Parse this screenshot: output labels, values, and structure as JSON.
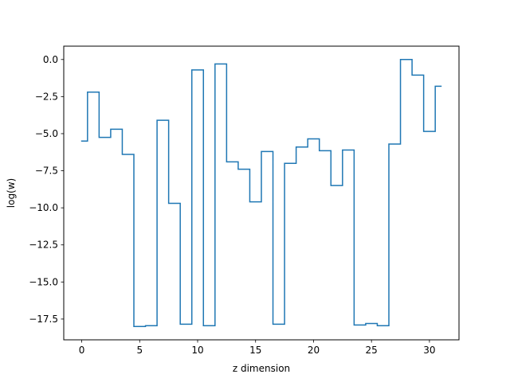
{
  "chart_data": {
    "type": "line",
    "drawstyle": "steps-mid",
    "title": "",
    "xlabel": "z dimension",
    "ylabel": "log(w)",
    "xlim": [
      -1.55,
      32.55
    ],
    "ylim": [
      -18.9,
      0.9
    ],
    "xticks": [
      0,
      5,
      10,
      15,
      20,
      25,
      30
    ],
    "xtick_labels": [
      "0",
      "5",
      "10",
      "15",
      "20",
      "25",
      "30"
    ],
    "yticks": [
      0.0,
      -2.5,
      -5.0,
      -7.5,
      -10.0,
      -12.5,
      -15.0,
      -17.5
    ],
    "ytick_labels": [
      "0.0",
      "−2.5",
      "−5.0",
      "−7.5",
      "−10.0",
      "−12.5",
      "−15.0",
      "−17.5"
    ],
    "grid": false,
    "legend": null,
    "series": [
      {
        "color": "#1f77b4",
        "x": [
          0,
          1,
          2,
          3,
          4,
          5,
          6,
          7,
          8,
          9,
          10,
          11,
          12,
          13,
          14,
          15,
          16,
          17,
          18,
          19,
          20,
          21,
          22,
          23,
          24,
          25,
          26,
          27,
          28,
          29,
          30,
          31
        ],
        "values": [
          -5.5,
          -2.2,
          -5.25,
          -4.7,
          -6.4,
          -18.0,
          -17.95,
          -4.1,
          -9.7,
          -17.85,
          -0.7,
          -17.95,
          -0.3,
          -6.9,
          -7.4,
          -9.6,
          -6.2,
          -17.85,
          -7.0,
          -5.9,
          -5.35,
          -6.15,
          -8.5,
          -6.1,
          -17.9,
          -17.8,
          -17.95,
          -5.7,
          0.0,
          -1.05,
          -4.85,
          -1.8
        ]
      }
    ]
  }
}
